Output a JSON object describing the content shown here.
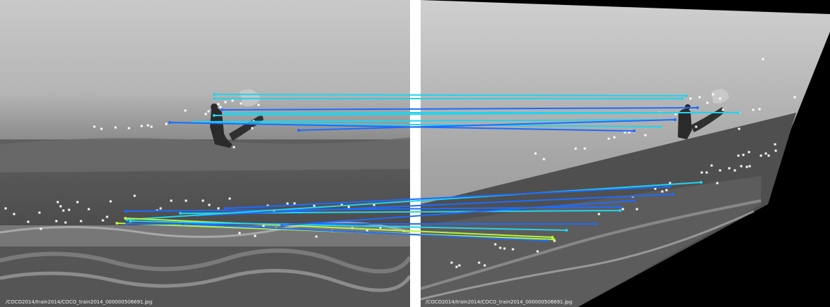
{
  "left_image": {
    "caption": "/COCO2014/train2014/COCO_train2014_000000506691.jpg"
  },
  "right_image": {
    "caption": "/COCO2014/train2014/COCO_train2014_000000506691.jpg"
  },
  "colors": {
    "background": "#ffffff",
    "keypoint": "#ffffff",
    "match_cyan": "#22d3ee",
    "match_blue": "#1e6bff",
    "match_lime": "#b6f542"
  }
}
